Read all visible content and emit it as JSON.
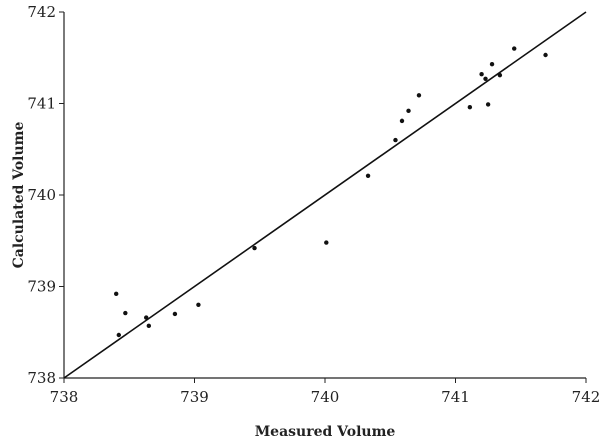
{
  "chart_data": {
    "type": "scatter",
    "title": "",
    "xlabel": "Measured Volume",
    "ylabel": "Calculated Volume",
    "xlim": [
      738,
      742
    ],
    "ylim": [
      738,
      742
    ],
    "x_ticks": [
      "738",
      "739",
      "740",
      "741",
      "742"
    ],
    "y_ticks": [
      "738",
      "739",
      "740",
      "741",
      "742"
    ],
    "reference_line": {
      "from": [
        738,
        738
      ],
      "to": [
        742,
        742
      ]
    },
    "grid": false,
    "points": [
      {
        "x": 738.4,
        "y": 738.92
      },
      {
        "x": 738.42,
        "y": 738.47
      },
      {
        "x": 738.47,
        "y": 738.71
      },
      {
        "x": 738.63,
        "y": 738.66
      },
      {
        "x": 738.65,
        "y": 738.57
      },
      {
        "x": 738.85,
        "y": 738.7
      },
      {
        "x": 739.03,
        "y": 738.8
      },
      {
        "x": 739.46,
        "y": 739.42
      },
      {
        "x": 740.01,
        "y": 739.48
      },
      {
        "x": 740.33,
        "y": 740.21
      },
      {
        "x": 740.54,
        "y": 740.6
      },
      {
        "x": 740.59,
        "y": 740.81
      },
      {
        "x": 740.64,
        "y": 740.92
      },
      {
        "x": 740.72,
        "y": 741.09
      },
      {
        "x": 741.11,
        "y": 740.96
      },
      {
        "x": 741.2,
        "y": 741.32
      },
      {
        "x": 741.23,
        "y": 741.27
      },
      {
        "x": 741.25,
        "y": 740.99
      },
      {
        "x": 741.28,
        "y": 741.43
      },
      {
        "x": 741.34,
        "y": 741.31
      },
      {
        "x": 741.45,
        "y": 741.6
      },
      {
        "x": 741.69,
        "y": 741.53
      }
    ]
  }
}
